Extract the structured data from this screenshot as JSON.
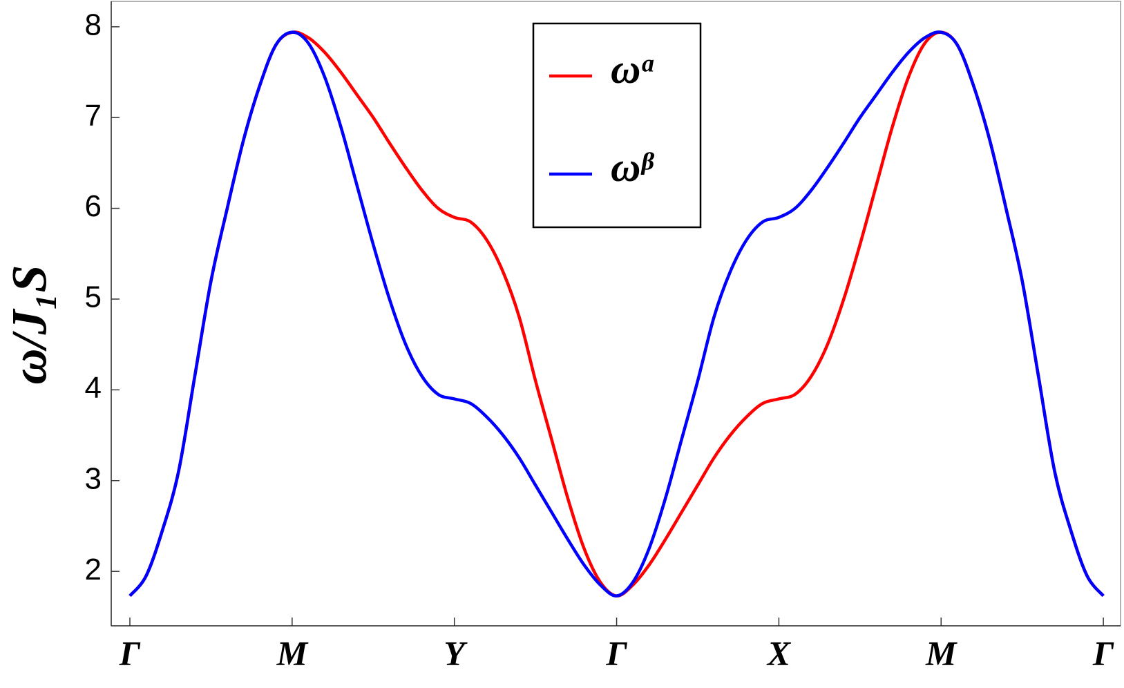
{
  "chart_data": {
    "type": "line",
    "y_label": "ω/J₁S",
    "x": [
      0,
      0.1,
      0.2,
      0.3,
      0.4,
      0.5,
      0.6,
      0.7,
      0.8,
      0.9,
      1,
      1.1,
      1.2,
      1.3,
      1.4,
      1.5,
      1.6,
      1.7,
      1.8,
      1.9,
      2,
      2.1,
      2.2,
      2.3,
      2.4,
      2.5,
      2.6,
      2.7,
      2.8,
      2.9,
      3,
      3.1,
      3.2,
      3.3,
      3.4,
      3.5,
      3.6,
      3.7,
      3.8,
      3.9,
      4,
      4.1,
      4.2,
      4.3,
      4.4,
      4.5,
      4.6,
      4.7,
      4.8,
      4.9,
      5,
      5.1,
      5.2,
      5.3,
      5.4,
      5.5,
      5.6,
      5.7,
      5.8,
      5.9,
      6
    ],
    "series": [
      {
        "name": "ωᵅ",
        "color": "#ff0000",
        "values": [
          1.73,
          1.95,
          2.45,
          3.1,
          4.15,
          5.2,
          6.0,
          6.75,
          7.35,
          7.8,
          7.94,
          7.88,
          7.72,
          7.5,
          7.25,
          7.0,
          6.72,
          6.45,
          6.2,
          6.0,
          5.9,
          5.85,
          5.65,
          5.3,
          4.8,
          4.1,
          3.45,
          2.8,
          2.25,
          1.88,
          1.73,
          1.85,
          2.07,
          2.35,
          2.65,
          2.95,
          3.25,
          3.5,
          3.7,
          3.85,
          3.9,
          3.95,
          4.15,
          4.5,
          5.0,
          5.6,
          6.25,
          6.9,
          7.45,
          7.82,
          7.94,
          7.8,
          7.35,
          6.75,
          6.0,
          5.2,
          4.15,
          3.1,
          2.45,
          1.95,
          1.73
        ]
      },
      {
        "name": "ωᵝ",
        "color": "#0000ff",
        "values": [
          1.73,
          1.95,
          2.45,
          3.1,
          4.15,
          5.2,
          6.0,
          6.75,
          7.35,
          7.8,
          7.94,
          7.82,
          7.45,
          6.9,
          6.25,
          5.6,
          5.0,
          4.5,
          4.15,
          3.95,
          3.9,
          3.85,
          3.7,
          3.5,
          3.25,
          2.95,
          2.65,
          2.35,
          2.07,
          1.85,
          1.73,
          1.88,
          2.25,
          2.8,
          3.45,
          4.1,
          4.8,
          5.3,
          5.65,
          5.85,
          5.9,
          6.0,
          6.2,
          6.45,
          6.72,
          7.0,
          7.25,
          7.5,
          7.72,
          7.88,
          7.94,
          7.8,
          7.35,
          6.75,
          6.0,
          5.2,
          4.15,
          3.1,
          2.45,
          1.95,
          1.73
        ]
      }
    ],
    "xlim": [
      -0.115,
      6.106
    ],
    "xticks": [
      {
        "value": 0,
        "label": "Γ"
      },
      {
        "value": 1,
        "label": "M"
      },
      {
        "value": 2,
        "label": "Y"
      },
      {
        "value": 3,
        "label": "Γ"
      },
      {
        "value": 4,
        "label": "X"
      },
      {
        "value": 5,
        "label": "M"
      },
      {
        "value": 6,
        "label": "Γ"
      }
    ],
    "ylim": [
      1.4,
      8.28
    ],
    "yticks": [
      2,
      3,
      4,
      5,
      6,
      7,
      8
    ],
    "legend": "top-center"
  }
}
